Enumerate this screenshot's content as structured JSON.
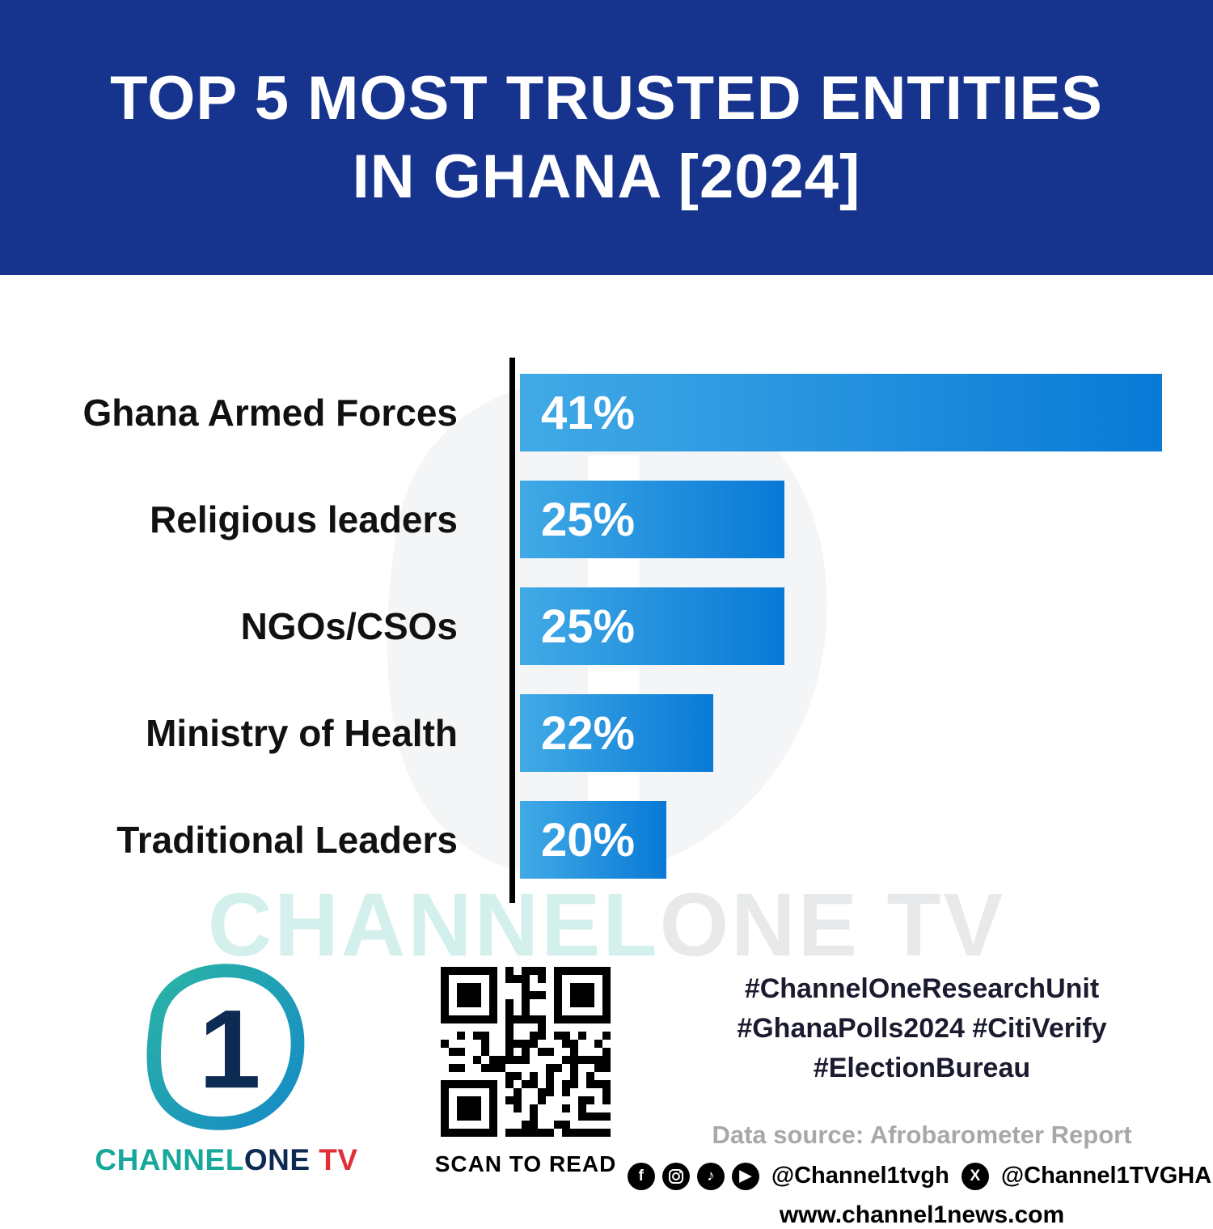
{
  "header": {
    "title_line1": "TOP 5 MOST TRUSTED ENTITIES",
    "title_line2": "IN GHANA [2024]"
  },
  "chart_data": {
    "type": "bar",
    "orientation": "horizontal",
    "title": "Top 5 Most Trusted Entities in Ghana [2024]",
    "categories": [
      "Ghana Armed Forces",
      "Religious leaders",
      "NGOs/CSOs",
      "Ministry of Health",
      "Traditional Leaders"
    ],
    "values": [
      41,
      25,
      25,
      22,
      20
    ],
    "value_labels": [
      "41%",
      "25%",
      "25%",
      "22%",
      "20%"
    ],
    "xlabel": "",
    "ylabel": "",
    "xlim": [
      0,
      41
    ],
    "grid": false,
    "legend": false,
    "bar_color_start": "#41aae6",
    "bar_color_end": "#0879d6"
  },
  "watermark": {
    "part1": "CHANNEL",
    "part2": "ONE TV"
  },
  "footer": {
    "logo": {
      "channel": "CHANNEL",
      "one": "ONE",
      "tv": " TV",
      "logo_glyph": "1"
    },
    "qr_caption": "SCAN TO READ",
    "hashtags": [
      "#ChannelOneResearchUnit",
      "#GhanaPolls2024 #CitiVerify",
      "#ElectionBureau"
    ],
    "data_source": "Data source: Afrobarometer Report",
    "social_handle_1": "@Channel1tvgh",
    "social_handle_2": "@Channel1TVGHA",
    "website": "www.channel1news.com",
    "icon_glyphs": {
      "facebook": "f",
      "tiktok": "♪",
      "youtube": "▶",
      "x": "X"
    }
  },
  "colors": {
    "header_bg": "#16338e",
    "bar_gradient_start": "#41aae6",
    "bar_gradient_end": "#0879d6",
    "logo_teal": "#17a89b",
    "logo_navy": "#0e2a52",
    "logo_red": "#e03038"
  }
}
